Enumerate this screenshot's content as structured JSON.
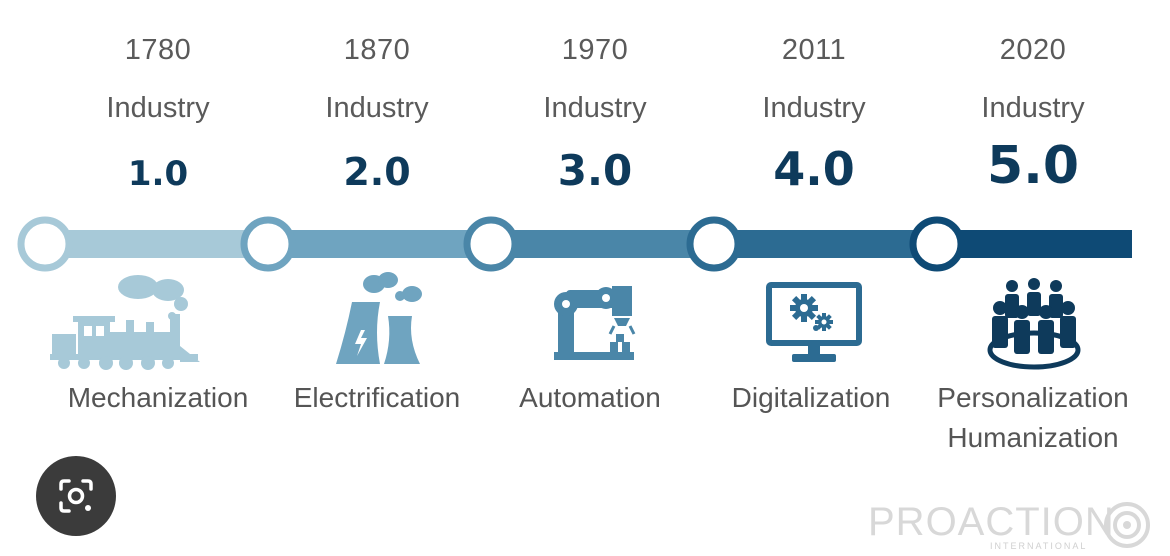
{
  "stages": [
    {
      "year": "1780",
      "industry": "Industry",
      "version": "1.0",
      "label": "Mechanization",
      "label2": "",
      "icon": "steam-train-icon",
      "color": "#a7c9d8"
    },
    {
      "year": "1870",
      "industry": "Industry",
      "version": "2.0",
      "label": "Electrification",
      "label2": "",
      "icon": "power-plant-icon",
      "color": "#6fa4c0"
    },
    {
      "year": "1970",
      "industry": "Industry",
      "version": "3.0",
      "label": "Automation",
      "label2": "",
      "icon": "robot-arm-icon",
      "color": "#4a86a8"
    },
    {
      "year": "2011",
      "industry": "Industry",
      "version": "4.0",
      "label": "Digitalization",
      "label2": "",
      "icon": "computer-gears-icon",
      "color": "#2c6b92"
    },
    {
      "year": "2020",
      "industry": "Industry",
      "version": "5.0",
      "label": "Personalization",
      "label2": "Humanization",
      "icon": "people-group-icon",
      "color": "#0e4a75"
    }
  ],
  "logo": {
    "text": "PROACTION",
    "subtext": "INTERNATIONAL"
  },
  "lens_button": {
    "icon": "lens-camera-icon"
  }
}
